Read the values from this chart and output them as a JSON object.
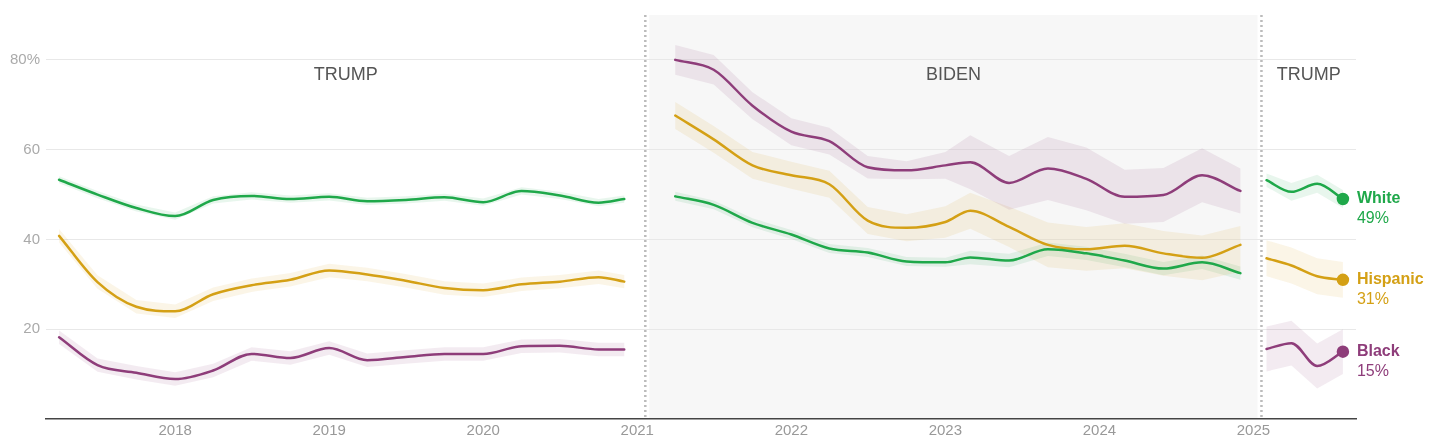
{
  "chart_data": {
    "type": "line",
    "x": [
      "2017-04",
      "2017-07",
      "2017-10",
      "2018-01",
      "2018-04",
      "2018-07",
      "2018-10",
      "2019-01",
      "2019-04",
      "2019-07",
      "2019-10",
      "2020-01",
      "2020-04",
      "2020-07",
      "2020-10",
      "2020-12",
      "2021-02",
      "2021-04",
      "2021-07",
      "2021-10",
      "2022-01",
      "2022-04",
      "2022-07",
      "2022-10",
      "2023-01",
      "2023-03",
      "2023-06",
      "2023-09",
      "2023-12",
      "2024-03",
      "2024-06",
      "2024-09",
      "2024-12",
      "2025-01",
      "2025-02",
      "2025-04",
      "2025-06",
      "2025-08"
    ],
    "series": [
      {
        "name": "White",
        "color": "#1fa84a",
        "values": [
          53.3,
          50,
          47,
          45.2,
          48.8,
          49.7,
          49,
          49.5,
          48.5,
          48.8,
          49.4,
          48.3,
          50.8,
          49.8,
          48.2,
          49,
          null,
          49.6,
          47.7,
          43.7,
          41.1,
          38,
          37.1,
          35.1,
          34.9,
          36,
          35.3,
          37.8,
          36.9,
          35.3,
          33.5,
          34.9,
          32.5,
          null,
          53.2,
          50.6,
          52.4,
          49
        ],
        "lower": [
          52.5,
          49.2,
          46.2,
          44.4,
          48,
          48.9,
          48.2,
          48.7,
          47.7,
          48,
          48.6,
          47.5,
          50,
          49,
          47.4,
          48.2,
          null,
          48.6,
          46.7,
          42.7,
          40.1,
          37,
          36.1,
          34.1,
          33.9,
          34.5,
          33.8,
          36.3,
          35.4,
          33.8,
          32,
          33.4,
          31,
          null,
          51.7,
          48.6,
          50.4,
          47
        ],
        "upper": [
          54.1,
          50.8,
          47.8,
          46,
          49.6,
          50.5,
          49.8,
          50.3,
          49.3,
          49.6,
          50.2,
          49.1,
          51.6,
          50.6,
          49,
          49.8,
          null,
          50.6,
          48.7,
          44.7,
          42.1,
          39,
          38.1,
          36.1,
          35.9,
          37.5,
          36.8,
          39.3,
          38.4,
          36.8,
          35,
          36.4,
          34,
          null,
          54.7,
          52.6,
          54.4,
          51
        ],
        "value_labels": [
          null,
          null,
          null,
          null,
          null,
          null,
          null,
          null,
          null,
          null,
          null,
          null,
          null,
          null,
          null,
          null,
          null,
          null,
          null,
          null,
          null,
          null,
          null,
          null,
          null,
          null,
          null,
          null,
          null,
          null,
          null,
          null,
          null,
          null,
          null,
          null,
          null,
          "49%"
        ]
      },
      {
        "name": "Hispanic",
        "color": "#d4a015",
        "values": [
          40.8,
          30.5,
          25,
          24,
          27.8,
          29.8,
          31,
          33.1,
          32.2,
          30.8,
          29.2,
          28.7,
          30,
          30.6,
          31.6,
          30.6,
          null,
          67.6,
          62.3,
          56.5,
          54.3,
          52.3,
          44.2,
          42.6,
          43.9,
          46.4,
          42.8,
          38.8,
          37.8,
          38.6,
          36.9,
          35.9,
          38.8,
          null,
          35.8,
          34.2,
          31.8,
          31
        ],
        "lower": [
          39.3,
          29,
          23.5,
          22.5,
          26.3,
          28.3,
          29.5,
          31.6,
          30.7,
          29.3,
          27.7,
          27.2,
          28.5,
          29.1,
          30.1,
          29.1,
          null,
          64.6,
          59.3,
          53.5,
          51.3,
          49.3,
          41.2,
          39.6,
          40.4,
          42.4,
          38.3,
          33.8,
          33,
          33.6,
          31.9,
          30.9,
          32.8,
          null,
          31.8,
          30.2,
          27.8,
          27
        ],
        "upper": [
          42.3,
          32,
          26.5,
          25.5,
          29.3,
          31.3,
          32.5,
          34.6,
          33.7,
          32.3,
          30.7,
          30.2,
          31.5,
          32.1,
          33.1,
          32.1,
          null,
          70.6,
          65.3,
          59.5,
          57.3,
          55.3,
          47.2,
          45.6,
          47.4,
          50.4,
          47.3,
          43.8,
          42.8,
          43.6,
          41.9,
          40.9,
          43,
          null,
          39.8,
          38.2,
          35.8,
          35
        ],
        "value_labels": [
          null,
          null,
          null,
          null,
          null,
          null,
          null,
          null,
          null,
          null,
          null,
          null,
          null,
          null,
          null,
          null,
          null,
          null,
          null,
          null,
          null,
          null,
          null,
          null,
          null,
          null,
          null,
          null,
          null,
          null,
          null,
          null,
          null,
          null,
          null,
          null,
          null,
          "31%"
        ]
      },
      {
        "name": "Black",
        "color": "#8e3d7a",
        "values": [
          18.2,
          12,
          10.3,
          8.9,
          10.8,
          14.5,
          13.6,
          15.8,
          13.1,
          13.8,
          14.5,
          14.5,
          16.2,
          16.3,
          15.5,
          15.5,
          null,
          80,
          77.8,
          69.8,
          64,
          61.9,
          56.1,
          55.4,
          56.5,
          57.2,
          52.6,
          55.8,
          53.5,
          49.5,
          49.9,
          54.3,
          50.8,
          null,
          15.6,
          16.9,
          11.8,
          15
        ],
        "lower": [
          16.7,
          10.5,
          8.8,
          7.4,
          9.3,
          13,
          12.1,
          14.3,
          11.6,
          12.3,
          13,
          13,
          14.7,
          14.8,
          14,
          14,
          null,
          76.7,
          74.5,
          66.8,
          61,
          58.9,
          53.6,
          53.4,
          53.5,
          51.2,
          46.6,
          48.8,
          46.5,
          43.5,
          43.9,
          48.3,
          45.8,
          null,
          10.6,
          11.9,
          6.8,
          10
        ],
        "upper": [
          19.7,
          13.5,
          11.8,
          10.4,
          12.3,
          16,
          15.1,
          17.3,
          14.6,
          15.3,
          16,
          16,
          17.7,
          17.8,
          17,
          17,
          null,
          83.3,
          81.1,
          72.8,
          67,
          64.9,
          58.6,
          57.4,
          59.5,
          63.2,
          58.6,
          62.8,
          60.5,
          55.5,
          55.9,
          60.3,
          55.8,
          null,
          20.6,
          21.9,
          16.8,
          20
        ],
        "value_labels": [
          null,
          null,
          null,
          null,
          null,
          null,
          null,
          null,
          null,
          null,
          null,
          null,
          null,
          null,
          null,
          null,
          null,
          null,
          null,
          null,
          null,
          null,
          null,
          null,
          null,
          null,
          null,
          null,
          null,
          null,
          null,
          null,
          null,
          null,
          null,
          null,
          null,
          "15%"
        ]
      }
    ],
    "xlim": [
      "2017-03",
      "2025-09"
    ],
    "xticks": [
      "2018",
      "2019",
      "2020",
      "2021",
      "2022",
      "2023",
      "2024",
      "2025"
    ],
    "ylim": [
      0,
      90
    ],
    "yticks": [
      20,
      40,
      60,
      {
        "value": 80,
        "label": "80%"
      }
    ],
    "grid": "y",
    "legend": false,
    "bands": [
      {
        "axis": "x",
        "from": "2021-01-20",
        "to": "2025-01-20",
        "label": "BIDEN",
        "color": "#f7f7f7"
      }
    ],
    "annotations": [
      "TRUMP",
      "TRUMP"
    ],
    "ref_lines": [
      {
        "axis": "x",
        "value": "2021-01-20",
        "color": "#bbbbbb",
        "line_style": "dotted"
      },
      {
        "axis": "x",
        "value": "2025-01-20",
        "color": "#bbbbbb",
        "line_style": "dotted"
      }
    ]
  }
}
